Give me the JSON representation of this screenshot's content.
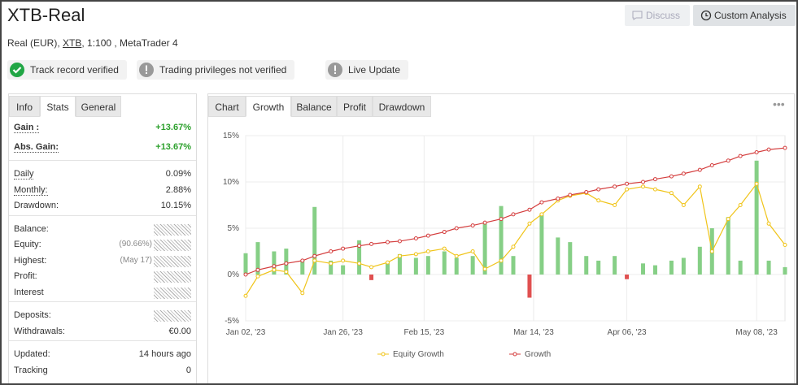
{
  "header": {
    "title": "XTB-Real",
    "account_type": "Real (EUR), ",
    "broker": "XTB",
    "account_rest": ", 1:100 , MetaTrader 4"
  },
  "buttons": [
    "Discuss",
    "Custom Analysis"
  ],
  "badges": [
    {
      "text": "Track record verified",
      "status": "ok"
    },
    {
      "text": "Trading privileges not verified",
      "status": "warn"
    },
    {
      "text": "Live Update",
      "status": "warn"
    }
  ],
  "left_tabs": {
    "items": [
      "Info",
      "Stats",
      "General"
    ],
    "active": 1
  },
  "stats": [
    [
      {
        "label": "Gain :",
        "value": "+13.67%",
        "positive": true
      },
      {
        "label": "Abs. Gain:",
        "value": "+13.67%",
        "positive": true
      }
    ],
    [
      {
        "label": "Daily",
        "value": "0.09%"
      },
      {
        "label": "Monthly:",
        "value": "2.88%"
      },
      {
        "label": "Drawdown:",
        "value": "10.15%"
      }
    ],
    [
      {
        "label": "Balance:",
        "hidden": true
      },
      {
        "label": "Equity:",
        "note": "(90.66%)",
        "hidden": true
      },
      {
        "label": "Highest:",
        "note": "(May 17)",
        "hidden": true
      },
      {
        "label": "Profit:",
        "hidden": true
      },
      {
        "label": "Interest",
        "hidden": true
      }
    ],
    [
      {
        "label": "Deposits:",
        "hidden": true
      },
      {
        "label": "Withdrawals:",
        "value": "€0.00"
      }
    ],
    [
      {
        "label": "Updated:",
        "value": "14 hours ago"
      },
      {
        "label": "Tracking",
        "value": "0"
      }
    ]
  ],
  "chart_tabs": {
    "items": [
      "Chart",
      "Growth",
      "Balance",
      "Profit",
      "Drawdown"
    ],
    "active": 1
  },
  "chart_data": {
    "type": "line",
    "x": [
      "2023-01-02",
      "2023-01-05",
      "2023-01-09",
      "2023-01-12",
      "2023-01-16",
      "2023-01-19",
      "2023-01-23",
      "2023-01-26",
      "2023-01-30",
      "2023-02-02",
      "2023-02-06",
      "2023-02-09",
      "2023-02-13",
      "2023-02-16",
      "2023-02-20",
      "2023-02-23",
      "2023-02-27",
      "2023-03-02",
      "2023-03-06",
      "2023-03-09",
      "2023-03-13",
      "2023-03-16",
      "2023-03-20",
      "2023-03-23",
      "2023-03-27",
      "2023-03-30",
      "2023-04-03",
      "2023-04-06",
      "2023-04-10",
      "2023-04-13",
      "2023-04-17",
      "2023-04-20",
      "2023-04-24",
      "2023-04-27",
      "2023-05-01",
      "2023-05-04",
      "2023-05-08",
      "2023-05-11",
      "2023-05-15"
    ],
    "bars": {
      "color_positive": "#86cf86",
      "color_negative": "#e05050",
      "values": [
        2.3,
        3.5,
        2.5,
        2.8,
        1.5,
        7.3,
        1.5,
        1.0,
        3.7,
        -0.6,
        1.2,
        2.2,
        1.8,
        2.0,
        2.5,
        1.8,
        2.0,
        5.5,
        7.4,
        2.0,
        -2.5,
        6.6,
        4.0,
        3.5,
        2.0,
        1.5,
        2.0,
        -0.5,
        1.2,
        1.0,
        1.5,
        1.8,
        3.0,
        5.0,
        6.2,
        1.5,
        12.3,
        1.5,
        0.8
      ]
    },
    "series": [
      {
        "name": "Equity Growth",
        "color": "#f0c419",
        "values": [
          -2.3,
          -0.2,
          0.5,
          0.3,
          -2.0,
          1.5,
          1.2,
          1.5,
          1.2,
          0.8,
          1.3,
          2.0,
          2.2,
          2.5,
          2.8,
          2.0,
          2.5,
          0.6,
          1.5,
          3.0,
          5.5,
          6.5,
          8.0,
          8.5,
          8.8,
          8.0,
          7.5,
          9.2,
          9.5,
          9.2,
          8.8,
          7.5,
          9.5,
          2.5,
          6.0,
          7.5,
          9.8,
          5.5,
          3.2
        ]
      },
      {
        "name": "Growth",
        "color": "#d43d3d",
        "values": [
          0,
          0.5,
          0.9,
          1.2,
          1.5,
          2.0,
          2.5,
          2.8,
          3.1,
          3.3,
          3.5,
          3.6,
          3.9,
          4.2,
          4.6,
          5.0,
          5.3,
          5.6,
          6.0,
          6.5,
          7.0,
          7.8,
          8.2,
          8.6,
          8.9,
          9.2,
          9.5,
          9.8,
          10.0,
          10.3,
          10.6,
          10.9,
          11.3,
          11.8,
          12.3,
          12.8,
          13.2,
          13.5,
          13.67
        ]
      }
    ],
    "xlim": [
      "2023-01-02",
      "2023-05-15"
    ],
    "xticks": [
      {
        "value": "2023-01-02",
        "label": "Jan 02, '23"
      },
      {
        "value": "2023-01-26",
        "label": "Jan 26, '23"
      },
      {
        "value": "2023-02-15",
        "label": "Feb 15, '23"
      },
      {
        "value": "2023-03-14",
        "label": "Mar 14, '23"
      },
      {
        "value": "2023-04-06",
        "label": "Apr 06, '23"
      },
      {
        "value": "2023-05-08",
        "label": "May 08, '23"
      }
    ],
    "ylim": [
      -5,
      15
    ],
    "yticks": [
      {
        "value": -5,
        "label": "-5%"
      },
      {
        "value": 0,
        "label": "0%"
      },
      {
        "value": 5,
        "label": "5%"
      },
      {
        "value": 10,
        "label": "10%"
      },
      {
        "value": 15,
        "label": "15%"
      }
    ],
    "grid": true
  }
}
